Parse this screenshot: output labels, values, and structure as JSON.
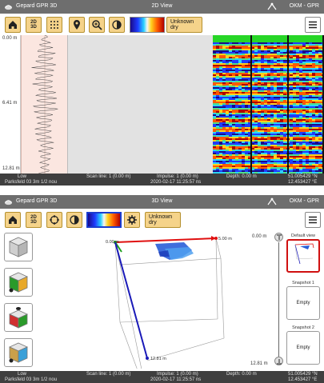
{
  "top": {
    "app_name": "Gepard GPR 3D",
    "view_name": "2D View",
    "device": "OKM - GPR",
    "toolbar": {
      "mode_toggle": [
        "2D",
        "3D"
      ],
      "soil_label": "Unknown dry"
    },
    "depth_axis": [
      "0.00 m",
      "6.41 m",
      "12.81 m"
    ],
    "status": {
      "gain": "Low",
      "params": "Parksfeld 03 3m 1/2 nou",
      "scan_line": "Scan line: 1 (0.00 m)",
      "impulse": "Impulse: 1 (0.00 m)",
      "timestamp": "2020-02-17 11:25:57 ns",
      "depth": "Depth: 0.00 m",
      "coord1": "51.005429 °N",
      "coord2": "12.453427 °E"
    }
  },
  "bottom": {
    "app_name": "Gepard GPR 3D",
    "view_name": "3D View",
    "device": "OKM - GPR",
    "toolbar": {
      "mode_toggle": [
        "2D",
        "3D"
      ],
      "soil_label": "Unknown dry"
    },
    "axes": {
      "x_end": "5.00 m",
      "y_end": "0.00 m",
      "z_end": "12.81 m"
    },
    "depth_slider": {
      "top": "0.00 m",
      "bottom": "12.81 m"
    },
    "snapshots": [
      {
        "label": "Default view",
        "content": ""
      },
      {
        "label": "Snapshot 1",
        "content": "Empty"
      },
      {
        "label": "Snapshot 2",
        "content": "Empty"
      }
    ],
    "status": {
      "gain": "Low",
      "params": "Parksfeld 03 3m 1/2 nou",
      "scan_line": "Scan line: 1 (0.00 m)",
      "impulse": "Impulse: 1 (0.00 m)",
      "timestamp": "2020-02-17 11:25:57 ns",
      "depth": "Depth: 0.00 m",
      "coord1": "51.005429 °N",
      "coord2": "12.453427 °E"
    }
  },
  "colors": {
    "button_bg": "#f5d38a",
    "titlebar_bg": "#6e6e6e",
    "statusbar_bg": "#3f3f3f",
    "trace_bg": "#fbe6e0",
    "x_axis": "#e01010",
    "y_axis": "#20a020",
    "z_axis": "#1a1ab8",
    "selected_snapshot": "#d01010"
  },
  "icons": [
    "gepard-logo-icon",
    "home-icon",
    "grid-icon",
    "location-pin-icon",
    "zoom-icon",
    "contrast-icon",
    "color-palette-icon",
    "menu-icon",
    "crosshair-icon",
    "gear-icon",
    "cube-icon",
    "device-icon"
  ]
}
